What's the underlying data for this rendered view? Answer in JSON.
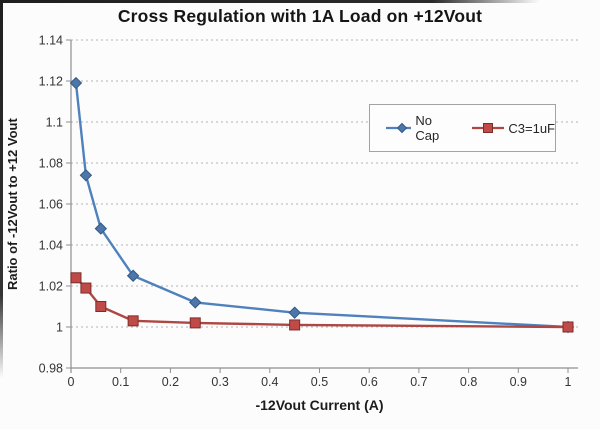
{
  "chart_data": {
    "type": "line",
    "title": "Cross Regulation with 1A Load on +12Vout",
    "xlabel": "-12Vout Current (A)",
    "ylabel": "Ratio of -12Vout to +12 Vout",
    "xlim": [
      0,
      1
    ],
    "ylim": [
      0.98,
      1.14
    ],
    "x_ticks": [
      "0",
      "0.1",
      "0.2",
      "0.3",
      "0.4",
      "0.5",
      "0.6",
      "0.7",
      "0.8",
      "0.9",
      "1"
    ],
    "y_ticks": [
      "1.14",
      "1.12",
      "1.1",
      "1.08",
      "1.06",
      "1.04",
      "1.02",
      "1",
      "0.98"
    ],
    "grid": "horizontal-dotted",
    "legend_position": "inside-upper-right",
    "series": [
      {
        "name": "No Cap",
        "marker": "diamond",
        "color": "#4F81BD",
        "marker_fill": "#4C76AC",
        "marker_border": "#35597F",
        "x": [
          0.01,
          0.03,
          0.06,
          0.125,
          0.25,
          0.45,
          1.0
        ],
        "y": [
          1.119,
          1.074,
          1.048,
          1.025,
          1.012,
          1.007,
          1.0
        ]
      },
      {
        "name": "C3=1uF",
        "marker": "square",
        "color": "#AE4743",
        "marker_fill": "#BE4B48",
        "marker_border": "#7E2D28",
        "x": [
          0.01,
          0.03,
          0.06,
          0.125,
          0.25,
          0.45,
          1.0
        ],
        "y": [
          1.024,
          1.019,
          1.01,
          1.003,
          1.002,
          1.001,
          1.0
        ]
      }
    ]
  }
}
